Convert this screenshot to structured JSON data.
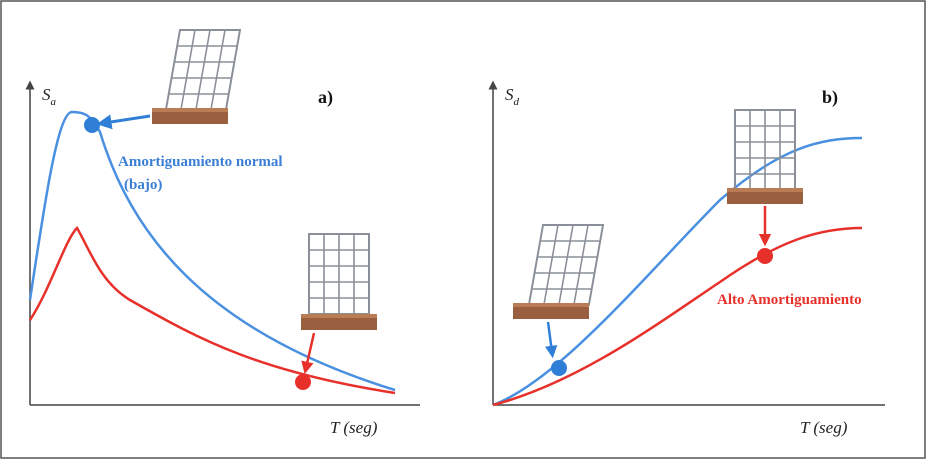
{
  "panel_a": {
    "label": "a)",
    "y_axis": {
      "symbol": "S",
      "subscript": "a"
    },
    "x_axis": "T (seg)",
    "annotation_line1": "Amortiguamiento normal",
    "annotation_line2": "(bajo)"
  },
  "panel_b": {
    "label": "b)",
    "y_axis": {
      "symbol": "S",
      "subscript": "d"
    },
    "x_axis": "T (seg)",
    "annotation": "Alto Amortiguamiento"
  }
}
